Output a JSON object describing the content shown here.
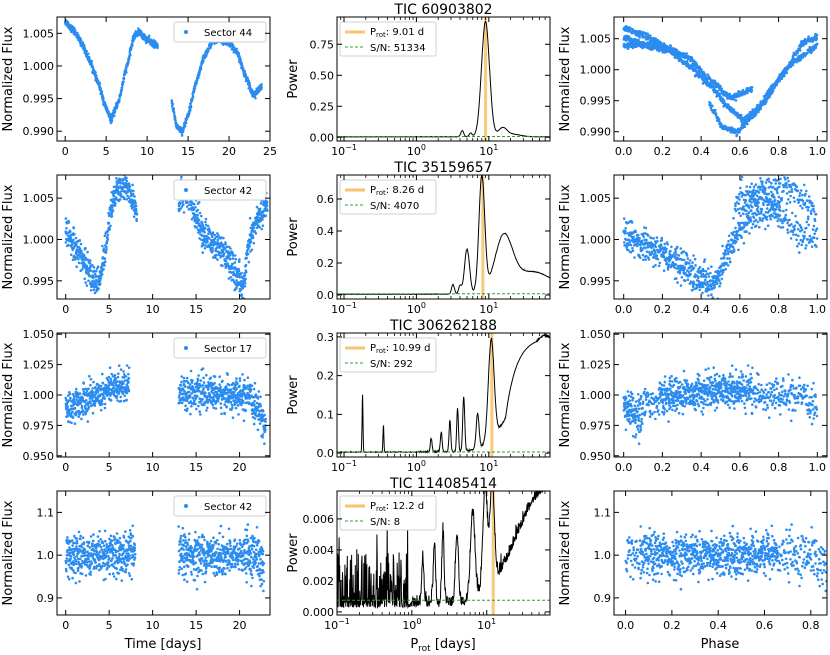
{
  "figure": {
    "columns": {
      "left_ylabel": "Normalized Flux",
      "mid_ylabel": "Power",
      "right_ylabel": "Normalized Flux"
    },
    "bottom_xlabels": {
      "left": "Time [days]",
      "mid_main": "P",
      "mid_sub": "rot",
      "mid_rest": " [days]",
      "right": "Phase"
    }
  },
  "chart_data": [
    {
      "type": "line",
      "panel": "r1-lightcurve",
      "xlabel": "",
      "ylabel": "Normalized Flux",
      "xlim": [
        -1,
        25
      ],
      "ylim": [
        0.9885,
        1.0075
      ],
      "xticks": [
        0,
        5,
        10,
        15,
        20,
        25
      ],
      "yticks": [
        0.99,
        0.995,
        1.0,
        1.005
      ],
      "ytick_labels": [
        "0.990",
        "0.995",
        "1.000",
        "1.005"
      ],
      "legend": "Sector 44",
      "legend_position": "top-right",
      "segments": [
        [
          0,
          11.3
        ],
        [
          13.0,
          24.0
        ]
      ],
      "curve": {
        "x": [
          0,
          1,
          2,
          3,
          4,
          5,
          5.6,
          6.5,
          7.5,
          8.4,
          9,
          10,
          11.3,
          13,
          13.6,
          14.3,
          15,
          16,
          17,
          18,
          19,
          20,
          21,
          22,
          23,
          24
        ],
        "y": [
          1.0068,
          1.0055,
          1.0035,
          1.0008,
          0.9975,
          0.9935,
          0.9918,
          0.9945,
          0.9998,
          1.0045,
          1.0052,
          1.004,
          1.003,
          0.9945,
          0.9908,
          0.99,
          0.9925,
          0.9975,
          1.0015,
          1.0038,
          1.004,
          1.0036,
          1.002,
          0.9985,
          0.9955,
          0.9968
        ]
      },
      "noise": 0.00025,
      "rotation_period": 9.01
    },
    {
      "type": "line",
      "panel": "r1-periodogram",
      "title": "TIC 60903802",
      "xlabel": "",
      "ylabel": "Power",
      "xscale": "log",
      "xlim": [
        0.08,
        70
      ],
      "ylim": [
        -0.03,
        0.97
      ],
      "xticks": [
        0.1,
        1,
        10
      ],
      "xtick_labels": [
        "10",
        "10",
        "10"
      ],
      "xtick_exps": [
        "−1",
        "0",
        "1"
      ],
      "yticks": [
        0.0,
        0.25,
        0.5,
        0.75
      ],
      "ytick_labels": [
        "0.00",
        "0.25",
        "0.50",
        "0.75"
      ],
      "legend": {
        "prot_main": "P",
        "prot_sub": "rot",
        "prot_value": ": 9.01 d",
        "snr_label": "S/N: 51334"
      },
      "legend_position": "top-left",
      "period": 9.01,
      "noise_floor": 0.006,
      "peaks": [
        {
          "p": 9.0,
          "h": 0.93,
          "w": 0.055
        },
        {
          "p": 4.3,
          "h": 0.05,
          "w": 0.02
        },
        {
          "p": 5.6,
          "h": 0.03,
          "w": 0.02
        },
        {
          "p": 15.5,
          "h": 0.07,
          "w": 0.06
        },
        {
          "p": 22,
          "h": 0.02,
          "w": 0.1
        }
      ],
      "baseline": 0.003,
      "noise": 0.001
    },
    {
      "type": "scatter",
      "panel": "r1-phase",
      "xlabel": "",
      "ylabel": "Normalized Flux",
      "xlim": [
        -0.05,
        1.05
      ],
      "ylim": [
        0.9885,
        1.0085
      ],
      "xticks": [
        0.0,
        0.2,
        0.4,
        0.6,
        0.8,
        1.0
      ],
      "xtick_labels": [
        "0.0",
        "0.2",
        "0.4",
        "0.6",
        "0.8",
        "1.0"
      ],
      "yticks": [
        0.99,
        0.995,
        1.0,
        1.005
      ],
      "ytick_labels": [
        "0.990",
        "0.995",
        "1.000",
        "1.005"
      ],
      "fold_of": "r1-lightcurve",
      "period": 9.01
    },
    {
      "type": "scatter",
      "panel": "r2-lightcurve",
      "xlabel": "",
      "ylabel": "Normalized Flux",
      "xlim": [
        -1,
        23.5
      ],
      "ylim": [
        0.9928,
        1.0078
      ],
      "xticks": [
        0,
        5,
        10,
        15,
        20
      ],
      "yticks": [
        0.995,
        1.0,
        1.005
      ],
      "ytick_labels": [
        "0.995",
        "1.000",
        "1.005"
      ],
      "legend": "Sector 42",
      "legend_position": "top-right",
      "segments": [
        [
          0,
          8.2
        ],
        [
          13.0,
          23.2
        ]
      ],
      "curve": {
        "x": [
          0,
          1,
          2,
          3,
          3.8,
          4.5,
          5.2,
          6,
          7,
          8,
          8.2,
          13,
          13.5,
          14.2,
          15,
          16,
          17,
          18,
          19,
          20,
          20.4,
          21,
          22,
          23.2
        ],
        "y": [
          1.001,
          0.9995,
          0.9975,
          0.9955,
          0.9945,
          0.9985,
          1.004,
          1.006,
          1.0065,
          1.0045,
          1.003,
          1.0045,
          1.0058,
          1.005,
          1.0025,
          1.0005,
          0.9995,
          0.9985,
          0.997,
          0.995,
          0.9945,
          0.999,
          1.0025,
          1.004
        ]
      },
      "noise": 0.0009,
      "rotation_period": 8.26
    },
    {
      "type": "line",
      "panel": "r2-periodogram",
      "title": "TIC 35159657",
      "xlabel": "",
      "ylabel": "Power",
      "xscale": "log",
      "xlim": [
        0.08,
        70
      ],
      "ylim": [
        -0.025,
        0.75
      ],
      "xticks": [
        0.1,
        1,
        10
      ],
      "xtick_labels": [
        "10",
        "10",
        "10"
      ],
      "xtick_exps": [
        "−1",
        "0",
        "1"
      ],
      "yticks": [
        0.0,
        0.2,
        0.4,
        0.6
      ],
      "ytick_labels": [
        "0.0",
        "0.2",
        "0.4",
        "0.6"
      ],
      "legend": {
        "prot_main": "P",
        "prot_sub": "rot",
        "prot_value": ": 8.26 d",
        "snr_label": "S/N: 4070"
      },
      "legend_position": "top-left",
      "period": 8.26,
      "noise_floor": 0.008,
      "peaks": [
        {
          "p": 8.0,
          "h": 0.72,
          "w": 0.04
        },
        {
          "p": 5.0,
          "h": 0.28,
          "w": 0.035
        },
        {
          "p": 3.2,
          "h": 0.06,
          "w": 0.02
        },
        {
          "p": 4.0,
          "h": 0.05,
          "w": 0.02
        },
        {
          "p": 16,
          "h": 0.32,
          "w": 0.12
        },
        {
          "p": 40,
          "h": 0.14,
          "w": 0.3
        }
      ],
      "baseline": 0.004,
      "noise": 0.0015
    },
    {
      "type": "scatter",
      "panel": "r2-phase",
      "xlabel": "",
      "ylabel": "Normalized Flux",
      "xlim": [
        -0.05,
        1.05
      ],
      "ylim": [
        0.9928,
        1.0078
      ],
      "xticks": [
        0.0,
        0.2,
        0.4,
        0.6,
        0.8,
        1.0
      ],
      "xtick_labels": [
        "0.0",
        "0.2",
        "0.4",
        "0.6",
        "0.8",
        "1.0"
      ],
      "yticks": [
        0.995,
        1.0,
        1.005
      ],
      "ytick_labels": [
        "0.995",
        "1.000",
        "1.005"
      ],
      "fold_of": "r2-lightcurve",
      "period": 8.26
    },
    {
      "type": "scatter",
      "panel": "r3-lightcurve",
      "xlabel": "",
      "ylabel": "Normalized Flux",
      "xlim": [
        -1,
        23.5
      ],
      "ylim": [
        0.949,
        1.051
      ],
      "xticks": [
        0,
        5,
        10,
        15,
        20
      ],
      "yticks": [
        0.95,
        0.975,
        1.0,
        1.025,
        1.05
      ],
      "ytick_labels": [
        "0.950",
        "0.975",
        "1.000",
        "1.025",
        "1.050"
      ],
      "legend": "Sector 17",
      "legend_position": "top-right",
      "segments": [
        [
          0,
          7.3
        ],
        [
          13.0,
          23.0
        ]
      ],
      "curve": {
        "x": [
          0,
          2,
          4,
          6,
          7.3,
          13,
          16,
          19,
          21,
          22,
          23
        ],
        "y": [
          0.988,
          0.995,
          1.002,
          1.007,
          1.01,
          1.003,
          1.001,
          1.0,
          0.998,
          0.99,
          0.975
        ]
      },
      "noise": 0.0065,
      "rotation_period": 10.99
    },
    {
      "type": "line",
      "panel": "r3-periodogram",
      "title": "TIC 306262188",
      "xlabel": "",
      "ylabel": "Power",
      "xscale": "log",
      "xlim": [
        0.08,
        70
      ],
      "ylim": [
        -0.01,
        0.31
      ],
      "xticks": [
        0.1,
        1,
        10
      ],
      "xtick_labels": [
        "10",
        "10",
        "10"
      ],
      "xtick_exps": [
        "−1",
        "0",
        "1"
      ],
      "yticks": [
        0.0,
        0.1,
        0.2,
        0.3
      ],
      "ytick_labels": [
        "0.0",
        "0.1",
        "0.2",
        "0.3"
      ],
      "legend": {
        "prot_main": "P",
        "prot_sub": "rot",
        "prot_value": ": 10.99 d",
        "snr_label": "S/N: 292"
      },
      "legend_position": "top-left",
      "period": 10.99,
      "noise_floor": 0.003,
      "peaks": [
        {
          "p": 0.18,
          "h": 0.15,
          "w": 0.006
        },
        {
          "p": 0.35,
          "h": 0.07,
          "w": 0.006
        },
        {
          "p": 1.6,
          "h": 0.035,
          "w": 0.012
        },
        {
          "p": 2.2,
          "h": 0.05,
          "w": 0.012
        },
        {
          "p": 2.9,
          "h": 0.08,
          "w": 0.012
        },
        {
          "p": 3.7,
          "h": 0.11,
          "w": 0.012
        },
        {
          "p": 4.5,
          "h": 0.14,
          "w": 0.014
        },
        {
          "p": 7.0,
          "h": 0.09,
          "w": 0.02
        },
        {
          "p": 10.8,
          "h": 0.26,
          "w": 0.04
        },
        {
          "p": 60,
          "h": 0.3,
          "w": 0.35
        }
      ],
      "rise": {
        "start": 15,
        "end": 60,
        "height": 0.3
      },
      "baseline": 0.002,
      "noise": 0.002
    },
    {
      "type": "scatter",
      "panel": "r3-phase",
      "xlabel": "",
      "ylabel": "Normalized Flux",
      "xlim": [
        -0.05,
        1.05
      ],
      "ylim": [
        0.949,
        1.051
      ],
      "xticks": [
        0.0,
        0.2,
        0.4,
        0.6,
        0.8,
        1.0
      ],
      "xtick_labels": [
        "0.0",
        "0.2",
        "0.4",
        "0.6",
        "0.8",
        "1.0"
      ],
      "yticks": [
        0.95,
        0.975,
        1.0,
        1.025,
        1.05
      ],
      "ytick_labels": [
        "0.950",
        "0.975",
        "1.000",
        "1.025",
        "1.050"
      ],
      "fold_of": "r3-lightcurve",
      "period": 10.99
    },
    {
      "type": "scatter",
      "panel": "r4-lightcurve",
      "xlabel": "Time [days]",
      "ylabel": "Normalized Flux",
      "xlim": [
        -1,
        23.5
      ],
      "ylim": [
        0.86,
        1.15
      ],
      "xticks": [
        0,
        5,
        10,
        15,
        20
      ],
      "yticks": [
        0.9,
        1.0,
        1.1
      ],
      "ytick_labels": [
        "0.9",
        "1.0",
        "1.1"
      ],
      "legend": "Sector 42",
      "legend_position": "top-right",
      "segments": [
        [
          0,
          8.0
        ],
        [
          13.0,
          22.8
        ]
      ],
      "curve": {
        "x": [
          0,
          8.0,
          13,
          22,
          22.8
        ],
        "y": [
          1.0,
          1.0,
          1.0,
          1.0,
          0.96
        ]
      },
      "noise": 0.024,
      "rotation_period": 12.2
    },
    {
      "type": "line",
      "panel": "r4-periodogram",
      "title": "TIC 114085414",
      "xlabel": "Prot [days]",
      "ylabel": "Power",
      "xscale": "log",
      "xlim": [
        0.1,
        70
      ],
      "ylim": [
        -0.0002,
        0.0078
      ],
      "xticks": [
        0.1,
        1,
        10
      ],
      "xtick_labels": [
        "10",
        "10",
        "10"
      ],
      "xtick_exps": [
        "−1",
        "0",
        "1"
      ],
      "yticks": [
        0.0,
        0.002,
        0.004,
        0.006
      ],
      "ytick_labels": [
        "0.000",
        "0.002",
        "0.004",
        "0.006"
      ],
      "legend": {
        "prot_main": "P",
        "prot_sub": "rot",
        "prot_value": ": 12.2 d",
        "snr_label": "S/N: 8"
      },
      "legend_position": "top-left",
      "period": 12.2,
      "noise_floor": 0.00075,
      "peaks": [
        {
          "p": 1.4,
          "h": 0.003,
          "w": 0.015
        },
        {
          "p": 2.0,
          "h": 0.004,
          "w": 0.015
        },
        {
          "p": 2.6,
          "h": 0.0045,
          "w": 0.015
        },
        {
          "p": 4.0,
          "h": 0.0045,
          "w": 0.02
        },
        {
          "p": 6.5,
          "h": 0.0055,
          "w": 0.03
        },
        {
          "p": 9.5,
          "h": 0.0066,
          "w": 0.03
        },
        {
          "p": 11.8,
          "h": 0.0066,
          "w": 0.03
        },
        {
          "p": 65,
          "h": 0.0075,
          "w": 0.4
        }
      ],
      "dense_noise": {
        "below": 0.9,
        "amplitude": 0.0035
      },
      "baseline": 0.0003,
      "noise": 0.0004
    },
    {
      "type": "scatter",
      "panel": "r4-phase",
      "xlabel": "Phase",
      "ylabel": "Normalized Flux",
      "xlim": [
        -0.05,
        0.87
      ],
      "ylim": [
        0.86,
        1.15
      ],
      "xticks": [
        0.0,
        0.2,
        0.4,
        0.6,
        0.8
      ],
      "xtick_labels": [
        "0.0",
        "0.2",
        "0.4",
        "0.6",
        "0.8"
      ],
      "yticks": [
        0.9,
        1.0,
        1.1
      ],
      "ytick_labels": [
        "0.9",
        "1.0",
        "1.1"
      ],
      "fold_of": "r4-lightcurve",
      "period": 12.2
    }
  ],
  "colors": {
    "points": "#2b8cf0",
    "line": "#000000",
    "period_band": "#f7c46c",
    "noise_line": "#2ca02c",
    "axes": "#000000"
  }
}
